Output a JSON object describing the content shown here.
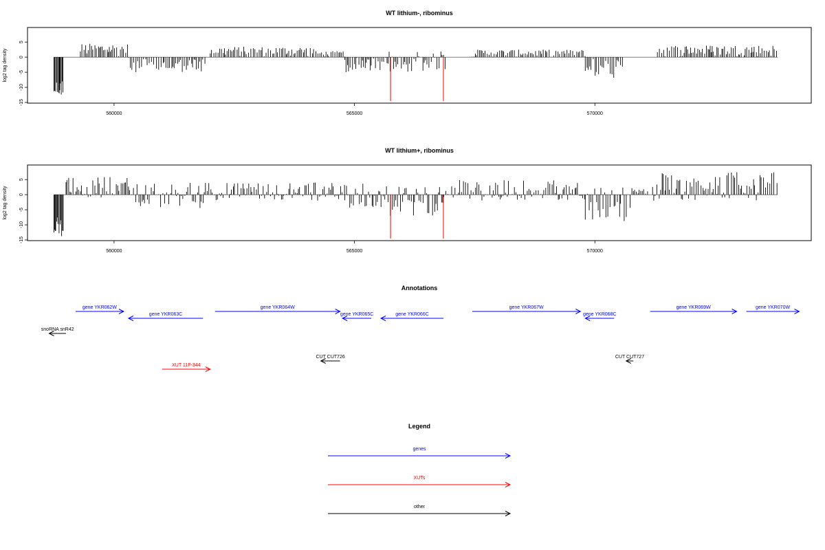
{
  "chart_data": [
    {
      "type": "bar",
      "title": "WT lithium-, ribominus",
      "xlabel": "",
      "ylabel": "log2 tag density",
      "xlim": [
        558200,
        574500
      ],
      "ylim": [
        -15,
        8
      ],
      "yticks": [
        "-15",
        "-10",
        "-5",
        "0",
        "5"
      ],
      "xticks": [
        "560000",
        "565000",
        "570000"
      ],
      "xtick_values": [
        560000,
        565000,
        570000
      ],
      "grid": false,
      "baseline": 0,
      "marker_positions": [
        565750,
        566850
      ],
      "marker_color": "#ff0000",
      "signal_regions": [
        {
          "from": 558750,
          "to": 558950,
          "min": -13,
          "max": -7
        },
        {
          "from": 559300,
          "to": 560300,
          "min": 0,
          "max": 4.5
        },
        {
          "from": 560300,
          "to": 561900,
          "min": -5,
          "max": 0
        },
        {
          "from": 562000,
          "to": 564200,
          "min": 0,
          "max": 3.5
        },
        {
          "from": 564200,
          "to": 564800,
          "min": 0,
          "max": 2
        },
        {
          "from": 564800,
          "to": 565700,
          "min": -5,
          "max": 0
        },
        {
          "from": 565700,
          "to": 566900,
          "min": -5,
          "max": 2
        },
        {
          "from": 567400,
          "to": 569000,
          "min": 0,
          "max": 2.5
        },
        {
          "from": 569000,
          "to": 569800,
          "min": 0,
          "max": 2.5
        },
        {
          "from": 569800,
          "to": 570600,
          "min": -7,
          "max": 0
        },
        {
          "from": 571300,
          "to": 572800,
          "min": 0,
          "max": 4
        },
        {
          "from": 572800,
          "to": 573800,
          "min": 0,
          "max": 4
        }
      ]
    },
    {
      "type": "bar",
      "title": "WT lithium+, ribominus",
      "xlabel": "",
      "ylabel": "log2 tag density",
      "xlim": [
        558200,
        574500
      ],
      "ylim": [
        -15,
        8
      ],
      "yticks": [
        "-15",
        "-10",
        "-5",
        "0",
        "5"
      ],
      "xticks": [
        "560000",
        "565000",
        "570000"
      ],
      "xtick_values": [
        560000,
        565000,
        570000
      ],
      "grid": false,
      "baseline": 0,
      "marker_positions": [
        565750,
        566850
      ],
      "marker_color": "#ff0000",
      "signal_regions": [
        {
          "from": 558750,
          "to": 558950,
          "min": -14,
          "max": -7
        },
        {
          "from": 559000,
          "to": 560300,
          "min": -1,
          "max": 6
        },
        {
          "from": 560300,
          "to": 561900,
          "min": -5,
          "max": 4
        },
        {
          "from": 561900,
          "to": 564800,
          "min": -2,
          "max": 4
        },
        {
          "from": 564800,
          "to": 565700,
          "min": -5,
          "max": 4
        },
        {
          "from": 565700,
          "to": 566900,
          "min": -7,
          "max": 3
        },
        {
          "from": 566900,
          "to": 569800,
          "min": -2,
          "max": 5
        },
        {
          "from": 569800,
          "to": 570800,
          "min": -9,
          "max": 3
        },
        {
          "from": 570800,
          "to": 571100,
          "min": 0,
          "max": 2
        },
        {
          "from": 571200,
          "to": 573800,
          "min": -2,
          "max": 7.5
        }
      ]
    }
  ],
  "annotations": {
    "title": "Annotations",
    "xlim": [
      558200,
      574500
    ],
    "items": [
      {
        "label": "gene YKR062W",
        "from": 559200,
        "to": 560200,
        "dir": "right",
        "row": 0,
        "color": "#0000ff"
      },
      {
        "label": "gene YKR063C",
        "from": 560300,
        "to": 561850,
        "dir": "left",
        "row": 1,
        "color": "#0000ff"
      },
      {
        "label": "gene YKR064W",
        "from": 562100,
        "to": 564700,
        "dir": "right",
        "row": 0,
        "color": "#0000ff"
      },
      {
        "label": "gene YKR065C",
        "from": 564750,
        "to": 565350,
        "dir": "left",
        "row": 1,
        "color": "#0000ff"
      },
      {
        "label": "gene YKR066C",
        "from": 565550,
        "to": 566850,
        "dir": "left",
        "row": 1,
        "color": "#0000ff"
      },
      {
        "label": "gene YKR067W",
        "from": 567450,
        "to": 569700,
        "dir": "right",
        "row": 0,
        "color": "#0000ff"
      },
      {
        "label": "gene YKR068C",
        "from": 569800,
        "to": 570400,
        "dir": "left",
        "row": 1,
        "color": "#0000ff"
      },
      {
        "label": "gene YKR069W",
        "from": 571150,
        "to": 572950,
        "dir": "right",
        "row": 0,
        "color": "#0000ff"
      },
      {
        "label": "gene YKR070W",
        "from": 573150,
        "to": 574250,
        "dir": "right",
        "row": 0,
        "color": "#0000ff"
      },
      {
        "label": "snoRNA snR42",
        "from": 558650,
        "to": 559000,
        "dir": "left",
        "row": 2,
        "color": "#000000"
      },
      {
        "label": "CUT CUT726",
        "from": 564300,
        "to": 564700,
        "dir": "left",
        "row": 3,
        "color": "#000000"
      },
      {
        "label": "CUT CUT727",
        "from": 570650,
        "to": 570800,
        "dir": "left",
        "row": 3,
        "color": "#000000"
      },
      {
        "label": "XUT 11F-344",
        "from": 561000,
        "to": 562000,
        "dir": "right",
        "row": 4,
        "color": "#ff0000"
      }
    ]
  },
  "legend": {
    "title": "Legend",
    "items": [
      {
        "label": "genes",
        "color": "#0000ff"
      },
      {
        "label": "XUTs",
        "color": "#ff0000"
      },
      {
        "label": "other",
        "color": "#000000"
      }
    ]
  }
}
